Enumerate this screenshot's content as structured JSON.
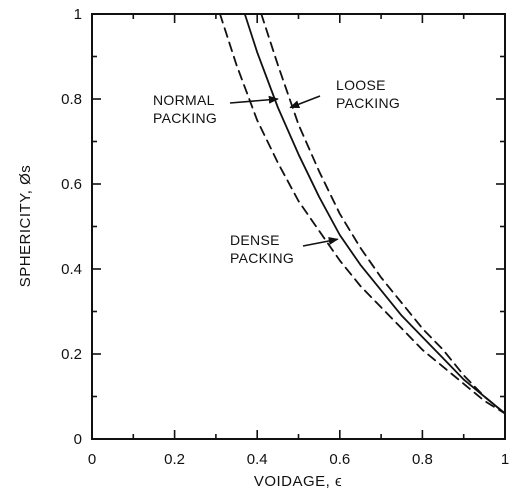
{
  "chart_data": {
    "type": "line",
    "xlabel": "VOIDAGE, ϵ",
    "ylabel": "SPHERICITY, Øs",
    "xlim": [
      0,
      1
    ],
    "ylim": [
      0,
      1
    ],
    "x_ticks": [
      "0",
      "0.2",
      "0.4",
      "0.6",
      "0.8",
      "1"
    ],
    "y_ticks": [
      "0",
      "0.2",
      "0.4",
      "0.6",
      "0.8",
      "1"
    ],
    "grid": false,
    "series": [
      {
        "name": "NORMAL PACKING",
        "style": "solid",
        "x": [
          0.37,
          0.4,
          0.45,
          0.5,
          0.55,
          0.6,
          0.65,
          0.7,
          0.75,
          0.8,
          0.85,
          0.9,
          0.95,
          1.0
        ],
        "y": [
          1.0,
          0.91,
          0.78,
          0.67,
          0.57,
          0.48,
          0.41,
          0.35,
          0.29,
          0.24,
          0.19,
          0.14,
          0.1,
          0.06
        ]
      },
      {
        "name": "DENSE PACKING",
        "style": "dashed",
        "x": [
          0.31,
          0.35,
          0.4,
          0.45,
          0.5,
          0.55,
          0.6,
          0.65,
          0.7,
          0.75,
          0.8,
          0.85,
          0.9,
          0.95,
          1.0
        ],
        "y": [
          1.0,
          0.88,
          0.75,
          0.65,
          0.56,
          0.49,
          0.42,
          0.36,
          0.31,
          0.26,
          0.21,
          0.17,
          0.13,
          0.09,
          0.06
        ]
      },
      {
        "name": "LOOSE PACKING",
        "style": "dashed",
        "x": [
          0.41,
          0.45,
          0.5,
          0.55,
          0.6,
          0.65,
          0.7,
          0.75,
          0.8,
          0.85,
          0.9,
          0.95,
          1.0
        ],
        "y": [
          1.0,
          0.88,
          0.74,
          0.63,
          0.53,
          0.45,
          0.38,
          0.32,
          0.26,
          0.21,
          0.15,
          0.1,
          0.06
        ]
      }
    ],
    "annotations": [
      {
        "lines": [
          "NORMAL",
          "PACKING"
        ],
        "target_series": "NORMAL PACKING",
        "arrow_to": [
          0.45,
          0.8
        ]
      },
      {
        "lines": [
          "LOOSE",
          "PACKING"
        ],
        "target_series": "LOOSE PACKING",
        "arrow_to": [
          0.48,
          0.78
        ]
      },
      {
        "lines": [
          "DENSE",
          "PACKING"
        ],
        "target_series": "DENSE PACKING",
        "arrow_to": [
          0.595,
          0.47
        ]
      }
    ]
  }
}
